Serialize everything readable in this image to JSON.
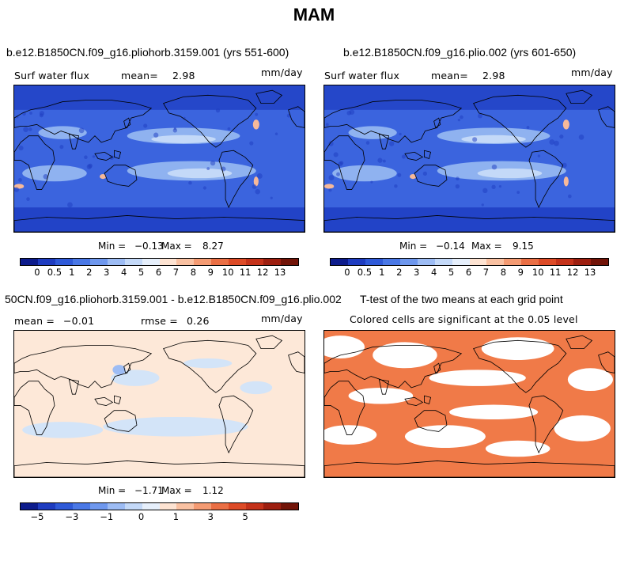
{
  "figure": {
    "main_title": "MAM"
  },
  "panels": [
    {
      "title": "b.e12.B1850CN.f09_g16.pliohorb.3159.001 (yrs 551-600)",
      "variable": "Surf water flux",
      "mean_label": "mean=",
      "mean_value": "2.98",
      "units": "mm/day",
      "min_label": "Min =",
      "min_value": "−0.13",
      "max_label": "Max =",
      "max_value": "8.27"
    },
    {
      "title": "b.e12.B1850CN.f09_g16.plio.002 (yrs 601-650)",
      "variable": "Surf water flux",
      "mean_label": "mean=",
      "mean_value": "2.98",
      "units": "mm/day",
      "min_label": "Min =",
      "min_value": "−0.14",
      "max_label": "Max =",
      "max_value": "9.15"
    },
    {
      "title": "50CN.f09_g16.pliohorb.3159.001 - b.e12.B1850CN.f09_g16.plio.002",
      "mean_label": "mean =",
      "mean_value": "−0.01",
      "rmse_label": "rmse =",
      "rmse_value": "0.26",
      "units": "mm/day",
      "min_label": "Min =",
      "min_value": "−1.71",
      "max_label": "Max =",
      "max_value": "1.12"
    },
    {
      "title": "T-test of the two means at each grid point",
      "subtitle": "Colored cells are significant at the 0.05 level"
    }
  ],
  "colorbars": {
    "abs": {
      "colors": [
        "#0d1c8c",
        "#1e3cc0",
        "#2f5ad8",
        "#4a78e6",
        "#6f98ee",
        "#9dbcf4",
        "#c4d9f8",
        "#e6effb",
        "#fde3d2",
        "#f9c1a2",
        "#f49b73",
        "#ea6f45",
        "#dd4b27",
        "#c4321a",
        "#9d1f10",
        "#721408"
      ],
      "labels": [
        "0",
        "0.5",
        "1",
        "2",
        "3",
        "4",
        "5",
        "6",
        "7",
        "8",
        "9",
        "10",
        "11",
        "12",
        "13"
      ]
    },
    "diff": {
      "colors": [
        "#0d1c8c",
        "#1e3cc0",
        "#2f5ad8",
        "#4a78e6",
        "#6f98ee",
        "#9dbcf4",
        "#c4d9f8",
        "#e6effb",
        "#fde3d2",
        "#f9c1a2",
        "#f49b73",
        "#ea6f45",
        "#dd4b27",
        "#c4321a",
        "#9d1f10",
        "#721408"
      ],
      "labels": [
        "−5",
        "−3",
        "−1",
        "0",
        "1",
        "3",
        "5"
      ]
    }
  },
  "map_colors": {
    "abs_base": "#3b64de",
    "abs_dark": "#1d3bc0",
    "abs_light": "#8fb2f0",
    "abs_pale": "#c4d9f8",
    "abs_warm": "#f7b99a",
    "land_fill": "none",
    "diff_base": "#fde8d8",
    "diff_blue": "#d3e4f8",
    "ttest": "#f07a48"
  }
}
